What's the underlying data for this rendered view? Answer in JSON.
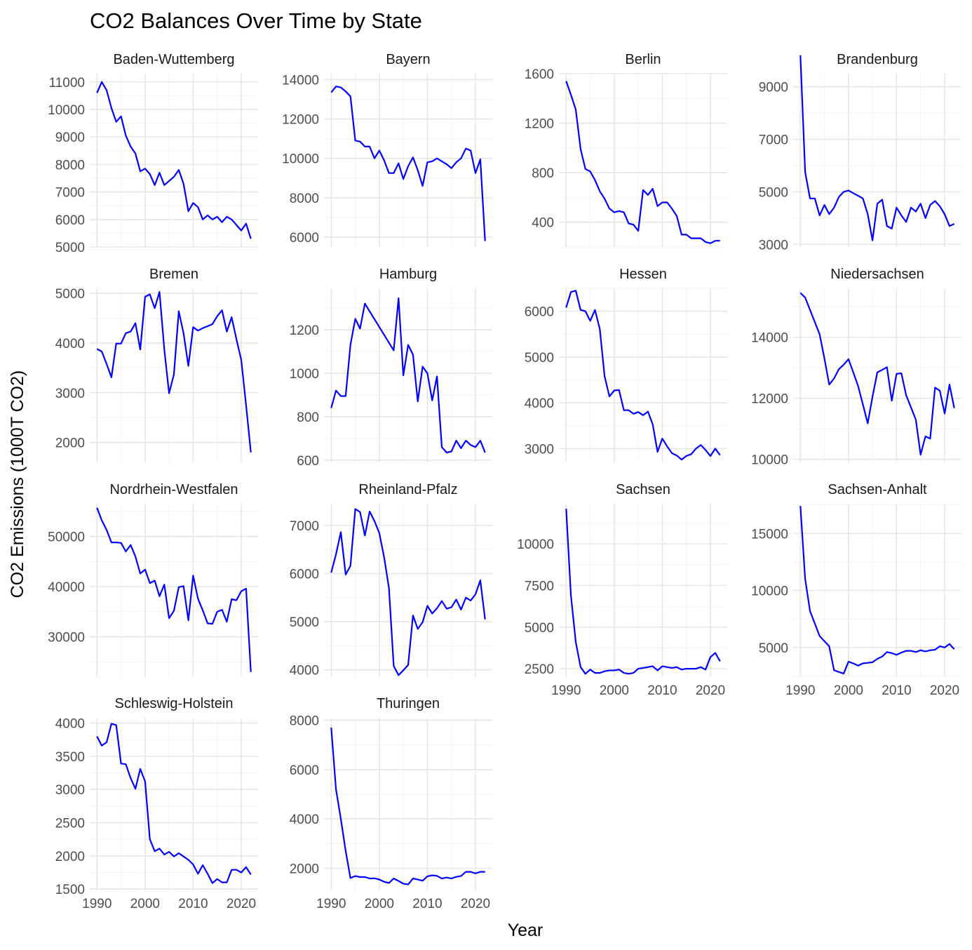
{
  "chart_data": {
    "type": "line",
    "title": "CO2 Balances Over Time by State",
    "xlabel": "Year",
    "ylabel": "CO2 Emissions (1000T CO2)",
    "grid": true,
    "series_color": "#0000ff",
    "facets": [
      {
        "name": "Baden-Wuttemberg",
        "ylim": [
          5000,
          11300
        ],
        "yticks": [
          5000,
          6000,
          7000,
          8000,
          9000,
          10000,
          11000
        ],
        "x": [
          1990,
          1991,
          1992,
          1993,
          1994,
          1995,
          1996,
          1997,
          1998,
          1999,
          2000,
          2001,
          2002,
          2003,
          2004,
          2005,
          2006,
          2007,
          2008,
          2009,
          2010,
          2011,
          2012,
          2013,
          2014,
          2015,
          2016,
          2017,
          2018,
          2019,
          2020,
          2021,
          2022
        ],
        "y": [
          10600,
          11000,
          10700,
          10050,
          9550,
          9750,
          9050,
          8650,
          8400,
          7750,
          7850,
          7650,
          7250,
          7700,
          7250,
          7400,
          7550,
          7800,
          7300,
          6300,
          6600,
          6450,
          6000,
          6150,
          6000,
          6100,
          5900,
          6100,
          6000,
          5800,
          5600,
          5850,
          5300
        ]
      },
      {
        "name": "Bayern",
        "ylim": [
          5500,
          14300
        ],
        "yticks": [
          6000,
          8000,
          10000,
          12000,
          14000
        ],
        "x": [
          1990,
          1991,
          1992,
          1993,
          1994,
          1995,
          1996,
          1997,
          1998,
          1999,
          2000,
          2001,
          2002,
          2003,
          2004,
          2005,
          2006,
          2007,
          2008,
          2009,
          2010,
          2011,
          2012,
          2013,
          2014,
          2015,
          2016,
          2017,
          2018,
          2019,
          2020,
          2021,
          2022
        ],
        "y": [
          13350,
          13650,
          13600,
          13400,
          13150,
          10900,
          10850,
          10600,
          10600,
          10000,
          10400,
          9900,
          9250,
          9250,
          9750,
          8950,
          9600,
          10050,
          9400,
          8600,
          9800,
          9850,
          10000,
          9850,
          9700,
          9500,
          9800,
          10000,
          10500,
          10400,
          9250,
          9950,
          5800
        ]
      },
      {
        "name": "Berlin",
        "ylim": [
          200,
          1600
        ],
        "yticks": [
          400,
          800,
          1200,
          1600
        ],
        "x": [
          1990,
          1991,
          1992,
          1993,
          1994,
          1995,
          1996,
          1997,
          1998,
          1999,
          2000,
          2001,
          2002,
          2003,
          2004,
          2005,
          2006,
          2007,
          2008,
          2009,
          2010,
          2011,
          2012,
          2013,
          2014,
          2015,
          2016,
          2017,
          2018,
          2019,
          2020,
          2021,
          2022
        ],
        "y": [
          1540,
          1430,
          1310,
          990,
          830,
          810,
          740,
          650,
          590,
          510,
          480,
          490,
          480,
          390,
          380,
          330,
          660,
          620,
          670,
          530,
          560,
          560,
          510,
          450,
          300,
          300,
          270,
          270,
          270,
          240,
          230,
          250,
          250
        ]
      },
      {
        "name": "Brandenburg",
        "ylim": [
          2900,
          9500
        ],
        "yticks": [
          3000,
          5000,
          7000,
          9000
        ],
        "x": [
          1990,
          1991,
          1992,
          1993,
          1994,
          1995,
          1996,
          1997,
          1998,
          1999,
          2000,
          2001,
          2002,
          2003,
          2004,
          2005,
          2006,
          2007,
          2008,
          2009,
          2010,
          2011,
          2012,
          2013,
          2014,
          2015,
          2016,
          2017,
          2018,
          2019,
          2020,
          2021,
          2022
        ],
        "y": [
          10200,
          5750,
          4750,
          4750,
          4100,
          4500,
          4150,
          4400,
          4800,
          5000,
          5050,
          4950,
          4850,
          4750,
          4150,
          3150,
          4550,
          4700,
          3700,
          3600,
          4400,
          4100,
          3850,
          4400,
          4250,
          4550,
          4000,
          4500,
          4650,
          4450,
          4150,
          3700,
          3780
        ]
      },
      {
        "name": "Bremen",
        "ylim": [
          1600,
          5100
        ],
        "yticks": [
          2000,
          3000,
          4000,
          5000
        ],
        "x": [
          1990,
          1991,
          1992,
          1993,
          1994,
          1995,
          1996,
          1997,
          1998,
          1999,
          2000,
          2001,
          2002,
          2003,
          2004,
          2005,
          2006,
          2007,
          2008,
          2009,
          2010,
          2011,
          2012,
          2013,
          2014,
          2015,
          2016,
          2017,
          2018,
          2019,
          2020,
          2021,
          2022
        ],
        "y": [
          3880,
          3830,
          3580,
          3310,
          3990,
          3990,
          4200,
          4230,
          4400,
          3870,
          4930,
          4980,
          4700,
          5030,
          3870,
          2990,
          3370,
          4640,
          4200,
          3540,
          4320,
          4250,
          4300,
          4340,
          4380,
          4540,
          4660,
          4230,
          4520,
          4080,
          3660,
          2750,
          1800
        ]
      },
      {
        "name": "Hamburg",
        "ylim": [
          590,
          1390
        ],
        "yticks": [
          600,
          800,
          1000,
          1200
        ],
        "x": [
          1990,
          1991,
          1992,
          1993,
          1994,
          1995,
          1996,
          1997,
          2003,
          2004,
          2005,
          2006,
          2007,
          2008,
          2009,
          2010,
          2011,
          2012,
          2013,
          2014,
          2015,
          2016,
          2017,
          2018,
          2019,
          2020,
          2021,
          2022
        ],
        "y": [
          840,
          920,
          895,
          895,
          1130,
          1250,
          1205,
          1320,
          1105,
          1345,
          990,
          1130,
          1085,
          870,
          1030,
          1000,
          875,
          985,
          660,
          635,
          640,
          690,
          655,
          690,
          670,
          660,
          690,
          635
        ]
      },
      {
        "name": "Hessen",
        "ylim": [
          2700,
          6500
        ],
        "yticks": [
          3000,
          4000,
          5000,
          6000
        ],
        "x": [
          1990,
          1991,
          1992,
          1993,
          1994,
          1995,
          1996,
          1997,
          1998,
          1999,
          2000,
          2001,
          2002,
          2003,
          2004,
          2005,
          2006,
          2007,
          2008,
          2009,
          2010,
          2011,
          2012,
          2013,
          2014,
          2015,
          2016,
          2017,
          2018,
          2019,
          2020,
          2021,
          2022
        ],
        "y": [
          6080,
          6420,
          6450,
          6030,
          6000,
          5790,
          6030,
          5610,
          4580,
          4140,
          4270,
          4280,
          3840,
          3840,
          3760,
          3800,
          3730,
          3810,
          3530,
          2930,
          3220,
          3050,
          2900,
          2850,
          2760,
          2840,
          2880,
          3000,
          3080,
          2970,
          2840,
          3000,
          2860
        ]
      },
      {
        "name": "Niedersachsen",
        "ylim": [
          9900,
          15600
        ],
        "yticks": [
          10000,
          12000,
          14000
        ],
        "x": [
          1990,
          1991,
          1994,
          1995,
          1996,
          1997,
          1998,
          1999,
          2000,
          2001,
          2002,
          2003,
          2004,
          2005,
          2006,
          2007,
          2008,
          2009,
          2010,
          2011,
          2012,
          2013,
          2014,
          2015,
          2016,
          2017,
          2018,
          2019,
          2020,
          2021,
          2022
        ],
        "y": [
          15450,
          15300,
          14100,
          13300,
          12450,
          12650,
          12950,
          13100,
          13280,
          12850,
          12400,
          11800,
          11180,
          12050,
          12850,
          12930,
          13020,
          11920,
          12800,
          12820,
          12100,
          11700,
          11300,
          10150,
          10750,
          10680,
          12350,
          12250,
          11500,
          12450,
          11680
        ]
      },
      {
        "name": "Nordrhein-Westfalen",
        "ylim": [
          22000,
          56500
        ],
        "yticks": [
          30000,
          40000,
          50000
        ],
        "x": [
          1990,
          1991,
          1992,
          1993,
          1994,
          1995,
          1996,
          1997,
          1998,
          1999,
          2000,
          2001,
          2002,
          2003,
          2004,
          2005,
          2006,
          2007,
          2008,
          2009,
          2010,
          2011,
          2012,
          2013,
          2014,
          2015,
          2016,
          2017,
          2018,
          2019,
          2020,
          2021,
          2022
        ],
        "y": [
          55700,
          53200,
          51300,
          48800,
          48800,
          48700,
          47000,
          48300,
          46000,
          42600,
          43400,
          40700,
          41200,
          38100,
          40400,
          33700,
          35200,
          39900,
          40100,
          33300,
          42200,
          37600,
          35300,
          32700,
          32600,
          35000,
          35400,
          33000,
          37500,
          37300,
          39100,
          39600,
          23000
        ]
      },
      {
        "name": "Rheinland-Pfalz",
        "ylim": [
          3850,
          7450
        ],
        "yticks": [
          4000,
          5000,
          6000,
          7000
        ],
        "x": [
          1990,
          1991,
          1992,
          1993,
          1994,
          1995,
          1996,
          1997,
          1998,
          1999,
          2000,
          2001,
          2002,
          2003,
          2004,
          2005,
          2006,
          2007,
          2008,
          2009,
          2010,
          2011,
          2012,
          2013,
          2014,
          2015,
          2016,
          2017,
          2018,
          2019,
          2020,
          2021,
          2022
        ],
        "y": [
          6020,
          6400,
          6860,
          5980,
          6160,
          7340,
          7280,
          6790,
          7290,
          7090,
          6840,
          6340,
          5700,
          4080,
          3890,
          3990,
          4100,
          5130,
          4850,
          4990,
          5330,
          5170,
          5280,
          5430,
          5270,
          5300,
          5460,
          5250,
          5500,
          5440,
          5570,
          5860,
          5050
        ]
      },
      {
        "name": "Sachsen",
        "ylim": [
          2000,
          12400
        ],
        "yticks": [
          2500,
          5000,
          7500,
          10000
        ],
        "x": [
          1990,
          1991,
          1992,
          1993,
          1994,
          1995,
          1996,
          1997,
          1998,
          1999,
          2000,
          2001,
          2002,
          2003,
          2004,
          2005,
          2006,
          2007,
          2008,
          2009,
          2010,
          2011,
          2012,
          2013,
          2014,
          2015,
          2016,
          2017,
          2018,
          2019,
          2020,
          2021,
          2022
        ],
        "y": [
          12100,
          6900,
          4100,
          2600,
          2200,
          2450,
          2250,
          2250,
          2350,
          2400,
          2400,
          2450,
          2250,
          2200,
          2250,
          2500,
          2550,
          2600,
          2650,
          2400,
          2650,
          2600,
          2550,
          2600,
          2450,
          2500,
          2500,
          2500,
          2600,
          2450,
          3200,
          3450,
          2950
        ]
      },
      {
        "name": "Sachsen-Anhalt",
        "ylim": [
          2400,
          17600
        ],
        "yticks": [
          5000,
          10000,
          15000
        ],
        "x": [
          1990,
          1991,
          1992,
          1994,
          1996,
          1997,
          1998,
          1999,
          2000,
          2001,
          2002,
          2003,
          2004,
          2005,
          2006,
          2007,
          2008,
          2009,
          2010,
          2011,
          2012,
          2013,
          2014,
          2015,
          2016,
          2017,
          2018,
          2019,
          2020,
          2021,
          2022
        ],
        "y": [
          17400,
          11000,
          8200,
          6000,
          5100,
          3000,
          2850,
          2700,
          3750,
          3600,
          3400,
          3600,
          3650,
          3700,
          4000,
          4200,
          4600,
          4500,
          4350,
          4550,
          4700,
          4700,
          4600,
          4750,
          4650,
          4750,
          4800,
          5100,
          5000,
          5300,
          4850
        ]
      },
      {
        "name": "Schleswig-Holstein",
        "ylim": [
          1480,
          4080
        ],
        "yticks": [
          1500,
          2000,
          2500,
          3000,
          3500,
          4000
        ],
        "x": [
          1990,
          1991,
          1992,
          1993,
          1994,
          1995,
          1996,
          1997,
          1998,
          1999,
          2000,
          2001,
          2002,
          2003,
          2004,
          2005,
          2006,
          2007,
          2008,
          2009,
          2010,
          2011,
          2012,
          2013,
          2014,
          2015,
          2016,
          2017,
          2018,
          2019,
          2020,
          2021,
          2022
        ],
        "y": [
          3800,
          3660,
          3710,
          3990,
          3970,
          3390,
          3380,
          3170,
          3010,
          3310,
          3120,
          2250,
          2070,
          2110,
          2020,
          2060,
          1990,
          2040,
          1990,
          1940,
          1870,
          1730,
          1860,
          1730,
          1590,
          1650,
          1600,
          1600,
          1790,
          1790,
          1750,
          1830,
          1720
        ]
      },
      {
        "name": "Thuringen",
        "ylim": [
          1100,
          8100
        ],
        "yticks": [
          2000,
          4000,
          6000,
          8000
        ],
        "x": [
          1990,
          1991,
          1992,
          1993,
          1994,
          1995,
          1996,
          1997,
          1998,
          1999,
          2000,
          2001,
          2002,
          2003,
          2004,
          2005,
          2006,
          2007,
          2008,
          2009,
          2010,
          2011,
          2012,
          2013,
          2014,
          2015,
          2016,
          2017,
          2018,
          2019,
          2020,
          2021,
          2022
        ],
        "y": [
          7700,
          5200,
          4000,
          2700,
          1600,
          1680,
          1640,
          1640,
          1580,
          1590,
          1540,
          1450,
          1400,
          1580,
          1480,
          1370,
          1340,
          1580,
          1540,
          1490,
          1670,
          1710,
          1690,
          1580,
          1620,
          1580,
          1650,
          1680,
          1850,
          1850,
          1790,
          1850,
          1850
        ]
      }
    ],
    "xlim": [
      1988.5,
      2023.5
    ],
    "xticks": [
      1990,
      2000,
      2010,
      2020
    ]
  }
}
